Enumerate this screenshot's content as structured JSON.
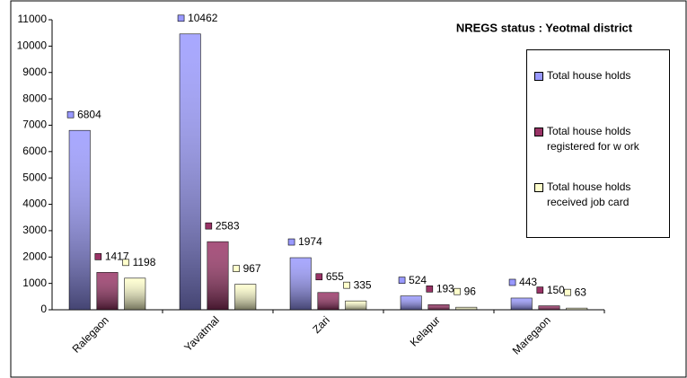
{
  "chart_data": {
    "type": "bar",
    "title": "NREGS status : Yeotmal district",
    "categories": [
      "Ralegaon",
      "Yavatmal",
      "Zari",
      "Kelapur",
      "Maregaon"
    ],
    "series": [
      {
        "name": "Total house holds",
        "color": "#9999ff",
        "values": [
          6804,
          10462,
          1974,
          524,
          443
        ]
      },
      {
        "name": "Total house holds registered for w ork",
        "color": "#993366",
        "values": [
          1417,
          2583,
          655,
          193,
          150
        ]
      },
      {
        "name": "Total house holds received job card",
        "color": "#ffffcc",
        "values": [
          1198,
          967,
          335,
          96,
          63
        ]
      }
    ],
    "ylim": [
      0,
      11000
    ],
    "yticks": [
      0,
      1000,
      2000,
      3000,
      4000,
      5000,
      6000,
      7000,
      8000,
      9000,
      10000,
      11000
    ],
    "legend": "right"
  }
}
